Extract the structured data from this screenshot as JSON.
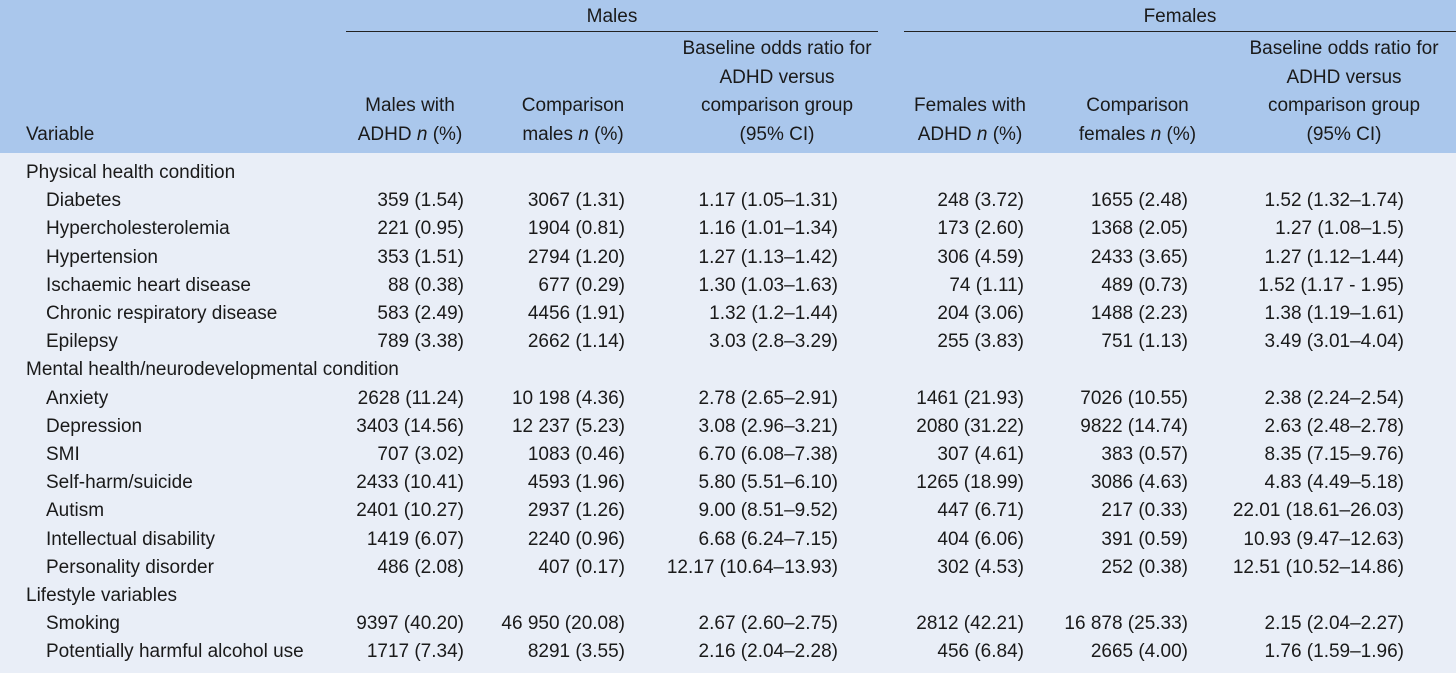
{
  "groups": [
    "Males",
    "Females"
  ],
  "headers": {
    "variable": "Variable",
    "males_adhd": [
      "Males with",
      "ADHD n (%)"
    ],
    "males_comp": [
      "Comparison",
      "males n (%)"
    ],
    "males_or": [
      "Baseline odds ratio for",
      "ADHD versus",
      "comparison group",
      "(95% CI)"
    ],
    "females_adhd": [
      "Females with",
      "ADHD n (%)"
    ],
    "females_comp": [
      "Comparison",
      "females n (%)"
    ],
    "females_or": [
      "Baseline odds ratio for",
      "ADHD versus",
      "comparison group",
      "(95% CI)"
    ]
  },
  "sections": [
    {
      "label": "Physical health condition",
      "rows": [
        [
          "Diabetes",
          "359 (1.54)",
          "3067 (1.31)",
          "1.17 (1.05–1.31)",
          "248 (3.72)",
          "1655 (2.48)",
          "1.52 (1.32–1.74)"
        ],
        [
          "Hypercholesterolemia",
          "221 (0.95)",
          "1904 (0.81)",
          "1.16 (1.01–1.34)",
          "173 (2.60)",
          "1368 (2.05)",
          "1.27 (1.08–1.5)"
        ],
        [
          "Hypertension",
          "353 (1.51)",
          "2794 (1.20)",
          "1.27 (1.13–1.42)",
          "306 (4.59)",
          "2433 (3.65)",
          "1.27 (1.12–1.44)"
        ],
        [
          "Ischaemic heart disease",
          "88 (0.38)",
          "677 (0.29)",
          "1.30 (1.03–1.63)",
          "74 (1.11)",
          "489 (0.73)",
          "1.52 (1.17 - 1.95)"
        ],
        [
          "Chronic respiratory disease",
          "583 (2.49)",
          "4456 (1.91)",
          "1.32 (1.2–1.44)",
          "204 (3.06)",
          "1488 (2.23)",
          "1.38 (1.19–1.61)"
        ],
        [
          "Epilepsy",
          "789 (3.38)",
          "2662 (1.14)",
          "3.03 (2.8–3.29)",
          "255 (3.83)",
          "751 (1.13)",
          "3.49 (3.01–4.04)"
        ]
      ]
    },
    {
      "label": "Mental health/neurodevelopmental condition",
      "rows": [
        [
          "Anxiety",
          "2628 (11.24)",
          "10 198 (4.36)",
          "2.78 (2.65–2.91)",
          "1461 (21.93)",
          "7026 (10.55)",
          "2.38 (2.24–2.54)"
        ],
        [
          "Depression",
          "3403 (14.56)",
          "12 237 (5.23)",
          "3.08 (2.96–3.21)",
          "2080 (31.22)",
          "9822 (14.74)",
          "2.63 (2.48–2.78)"
        ],
        [
          "SMI",
          "707 (3.02)",
          "1083 (0.46)",
          "6.70 (6.08–7.38)",
          "307 (4.61)",
          "383 (0.57)",
          "8.35 (7.15–9.76)"
        ],
        [
          "Self-harm/suicide",
          "2433 (10.41)",
          "4593 (1.96)",
          "5.80 (5.51–6.10)",
          "1265 (18.99)",
          "3086 (4.63)",
          "4.83 (4.49–5.18)"
        ],
        [
          "Autism",
          "2401 (10.27)",
          "2937 (1.26)",
          "9.00 (8.51–9.52)",
          "447 (6.71)",
          "217 (0.33)",
          "22.01 (18.61–26.03)"
        ],
        [
          "Intellectual disability",
          "1419 (6.07)",
          "2240 (0.96)",
          "6.68 (6.24–7.15)",
          "404 (6.06)",
          "391 (0.59)",
          "10.93 (9.47–12.63)"
        ],
        [
          "Personality disorder",
          "486 (2.08)",
          "407 (0.17)",
          "12.17 (10.64–13.93)",
          "302 (4.53)",
          "252 (0.38)",
          "12.51 (10.52–14.86)"
        ]
      ]
    },
    {
      "label": "Lifestyle variables",
      "rows": [
        [
          "Smoking",
          "9397 (40.20)",
          "46 950 (20.08)",
          "2.67 (2.60–2.75)",
          "2812 (42.21)",
          "16 878 (25.33)",
          "2.15 (2.04–2.27)"
        ],
        [
          "Potentially harmful alcohol use",
          "1717 (7.34)",
          "8291 (3.55)",
          "2.16 (2.04–2.28)",
          "456 (6.84)",
          "2665 (4.00)",
          "1.76 (1.59–1.96)"
        ]
      ]
    }
  ]
}
